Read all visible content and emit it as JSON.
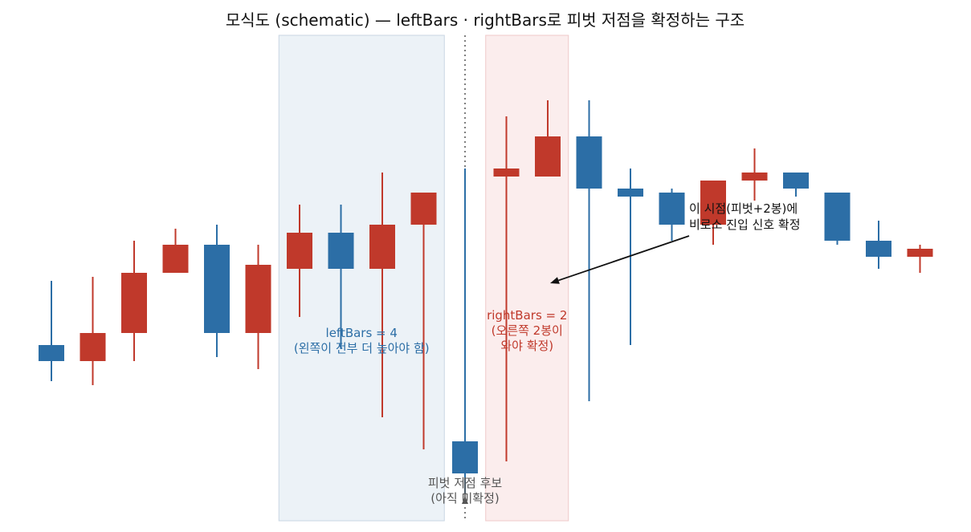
{
  "chart_data": {
    "type": "candlestick",
    "title": "모식도 (schematic) — leftBars · rightBars로 피벗 저점을 확정하는 구조",
    "xlabel": "",
    "ylabel": "",
    "colors": {
      "up": "#c0392b",
      "down": "#2c6ea6",
      "left_zone": "#dde7f0",
      "right_zone": "#f7dede",
      "dotted_line": "#555555",
      "arrow": "#555555"
    },
    "bars": [
      {
        "open": 2.0,
        "high": 2.8,
        "low": 1.55,
        "close": 1.8
      },
      {
        "open": 1.8,
        "high": 2.85,
        "low": 1.5,
        "close": 2.15
      },
      {
        "open": 2.15,
        "high": 3.3,
        "low": 1.8,
        "close": 2.9
      },
      {
        "open": 2.9,
        "high": 3.45,
        "low": 2.9,
        "close": 3.25
      },
      {
        "open": 3.25,
        "high": 3.5,
        "low": 1.85,
        "close": 2.15
      },
      {
        "open": 2.15,
        "high": 3.25,
        "low": 1.7,
        "close": 3.0
      },
      {
        "open": 2.95,
        "high": 3.75,
        "low": 2.35,
        "close": 3.4
      },
      {
        "open": 3.4,
        "high": 3.75,
        "low": 1.95,
        "close": 2.95
      },
      {
        "open": 2.95,
        "high": 4.15,
        "low": 1.1,
        "close": 3.5
      },
      {
        "open": 3.5,
        "high": 3.8,
        "low": 0.7,
        "close": 3.9
      },
      {
        "open": 0.8,
        "high": 4.2,
        "low": 0.15,
        "close": 0.4
      },
      {
        "open": 4.1,
        "high": 4.85,
        "low": 0.55,
        "close": 4.2
      },
      {
        "open": 4.1,
        "high": 5.05,
        "low": 4.2,
        "close": 4.6
      },
      {
        "open": 4.6,
        "high": 5.05,
        "low": 1.3,
        "close": 3.95
      },
      {
        "open": 3.95,
        "high": 4.2,
        "low": 2.0,
        "close": 3.85
      },
      {
        "open": 3.9,
        "high": 3.95,
        "low": 3.3,
        "close": 3.5
      },
      {
        "open": 3.5,
        "high": 3.65,
        "low": 3.25,
        "close": 4.05
      },
      {
        "open": 4.05,
        "high": 4.45,
        "low": 3.8,
        "close": 4.15
      },
      {
        "open": 4.15,
        "high": 4.15,
        "low": 3.85,
        "close": 3.95
      },
      {
        "open": 3.9,
        "high": 3.9,
        "low": 3.25,
        "close": 3.3
      },
      {
        "open": 3.3,
        "high": 3.55,
        "low": 2.95,
        "close": 3.1
      },
      {
        "open": 3.1,
        "high": 3.25,
        "low": 2.9,
        "close": 3.2
      }
    ],
    "pivot_index": 10,
    "left_zone": {
      "start": 6,
      "end": 9,
      "label": "leftBars = 4",
      "sublabel": "(왼쪽이 전부 더 높아야 함)"
    },
    "right_zone": {
      "start": 11,
      "end": 12,
      "label": "rightBars = 2",
      "sublabel1": "(오른쪽 2봉이",
      "sublabel2": "와야 확정)"
    },
    "pivot_annotation": {
      "line1": "피벗 저점 후보",
      "line2": "(아직 미확정)"
    },
    "signal_annotation": {
      "line1": "이 시점(피벗+2봉)에",
      "line2": "비로소 진입 신호 확정",
      "target_index": 12
    }
  }
}
